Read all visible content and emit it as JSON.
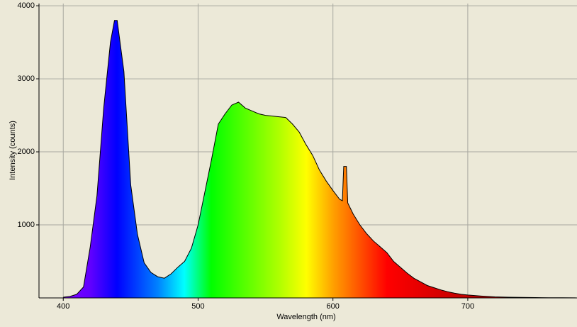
{
  "chart_data": {
    "type": "area",
    "x_label": "Wavelength (nm)",
    "y_label": "Intensity (counts)",
    "x": [
      400,
      405,
      410,
      415,
      420,
      425,
      430,
      435,
      438,
      440,
      445,
      450,
      455,
      460,
      465,
      470,
      475,
      480,
      485,
      490,
      495,
      500,
      505,
      510,
      515,
      520,
      525,
      530,
      535,
      540,
      545,
      550,
      555,
      560,
      565,
      570,
      575,
      580,
      585,
      590,
      595,
      600,
      605,
      607,
      608,
      610,
      611,
      615,
      620,
      625,
      630,
      635,
      640,
      645,
      650,
      655,
      660,
      665,
      670,
      675,
      680,
      685,
      690,
      695,
      700,
      710,
      720,
      730,
      740,
      750,
      760,
      770,
      780
    ],
    "values": [
      10,
      20,
      50,
      150,
      700,
      1400,
      2600,
      3500,
      3800,
      3800,
      3100,
      1550,
      870,
      480,
      350,
      290,
      270,
      330,
      420,
      500,
      680,
      1000,
      1450,
      1900,
      2380,
      2520,
      2640,
      2680,
      2600,
      2560,
      2520,
      2500,
      2490,
      2480,
      2470,
      2380,
      2270,
      2100,
      1950,
      1750,
      1600,
      1470,
      1350,
      1330,
      1800,
      1800,
      1300,
      1150,
      1000,
      880,
      780,
      700,
      620,
      500,
      420,
      340,
      270,
      220,
      170,
      140,
      110,
      85,
      65,
      50,
      40,
      25,
      15,
      10,
      7,
      5,
      3,
      2,
      1
    ],
    "xlim": [
      382,
      781
    ],
    "ylim": [
      0,
      4030
    ],
    "xticks": [
      400,
      500,
      600,
      700
    ],
    "yticks": [
      1000,
      2000,
      3000,
      4000
    ],
    "grid": true
  }
}
